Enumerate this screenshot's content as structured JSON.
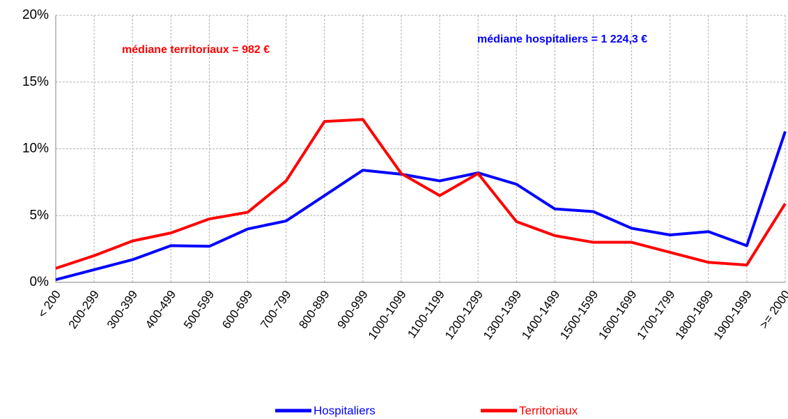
{
  "chart_data": {
    "type": "line",
    "categories": [
      "< 200",
      "200-299",
      "300-399",
      "400-499",
      "500-599",
      "600-699",
      "700-799",
      "800-899",
      "900-999",
      "1000-1099",
      "1100-1199",
      "1200-1299",
      "1300-1399",
      "1400-1499",
      "1500-1599",
      "1600-1699",
      "1700-1799",
      "1800-1899",
      "1900-1999",
      ">= 2000"
    ],
    "series": [
      {
        "name": "Hospitaliers",
        "color": "#0000ff",
        "values": [
          0.2,
          0.95,
          1.7,
          2.75,
          2.7,
          4.0,
          4.6,
          6.5,
          8.4,
          8.1,
          7.6,
          8.2,
          7.35,
          5.5,
          5.3,
          4.05,
          3.55,
          3.8,
          2.75,
          11.3
        ]
      },
      {
        "name": "Territoriaux",
        "color": "#ff0000",
        "values": [
          1.05,
          2.0,
          3.1,
          3.7,
          4.75,
          5.25,
          7.6,
          12.05,
          12.2,
          8.15,
          6.5,
          8.15,
          4.55,
          3.5,
          3.0,
          3.0,
          2.25,
          1.5,
          1.3,
          5.9
        ]
      }
    ],
    "ylim": [
      0,
      20
    ],
    "yticks": [
      {
        "value": 0,
        "label": "0%"
      },
      {
        "value": 5,
        "label": "5%"
      },
      {
        "value": 10,
        "label": "10%"
      },
      {
        "value": 15,
        "label": "15%"
      },
      {
        "value": 20,
        "label": "20%"
      }
    ],
    "grid": true,
    "legend": "bottom",
    "annotations": [
      {
        "text": "médiane territoriaux = 982  €",
        "color": "#ff0000"
      },
      {
        "text": "médiane hospitaliers = 1 224,3  €",
        "color": "#0000ff"
      }
    ]
  }
}
